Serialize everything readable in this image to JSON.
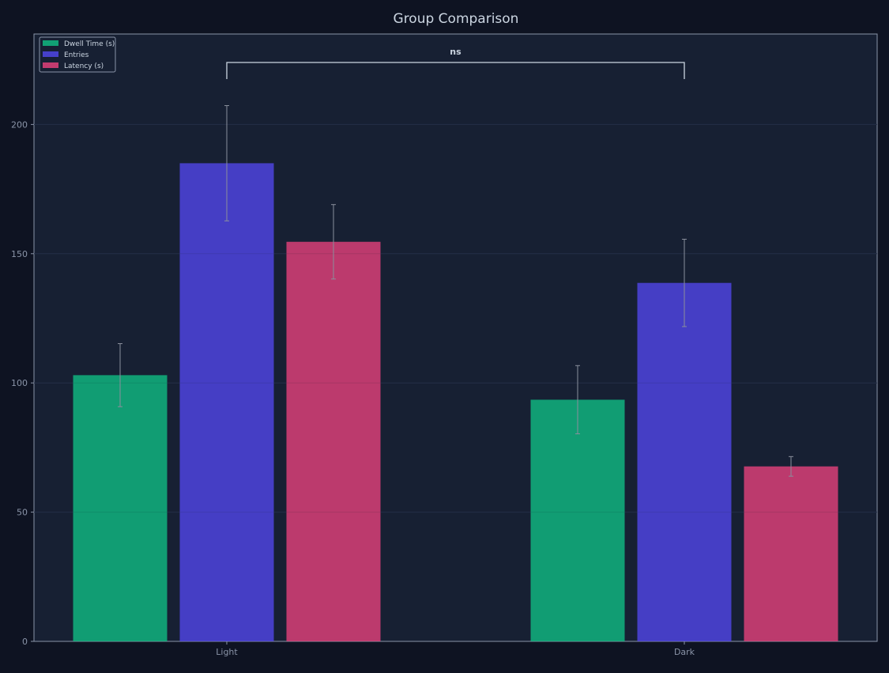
{
  "chart_data": {
    "type": "bar",
    "title": "Group Comparison",
    "xlabel": "",
    "ylabel": "",
    "categories": [
      "Light",
      "Dark"
    ],
    "series": [
      {
        "name": "Dwell Time (s)",
        "color": "#10b981",
        "values": [
          103.0,
          93.5
        ],
        "errors": [
          12.2,
          13.2
        ]
      },
      {
        "name": "Entries",
        "color": "#4f46e5",
        "values": [
          185.0,
          138.7
        ],
        "errors": [
          22.3,
          16.9
        ]
      },
      {
        "name": "Latency (s)",
        "color": "#e0417a",
        "values": [
          154.6,
          67.7
        ],
        "errors": [
          14.4,
          3.8
        ]
      }
    ],
    "ylim": [
      0,
      235
    ],
    "yticks": [
      0,
      50,
      100,
      150,
      200
    ],
    "grid": true,
    "legend_position": "top-left",
    "annotations": [
      {
        "type": "significance-bracket",
        "from": "Light",
        "to": "Dark",
        "label": "ns"
      }
    ]
  },
  "colors": {
    "background": "#0e1322",
    "plot_background": "#172033",
    "axis": "#8a94a8",
    "text": "#cbd5e1",
    "tick_text": "#8a94a8",
    "grid": "#2a3550",
    "error_bar": "#8a8f9c",
    "bracket": "#cbd5e1"
  }
}
